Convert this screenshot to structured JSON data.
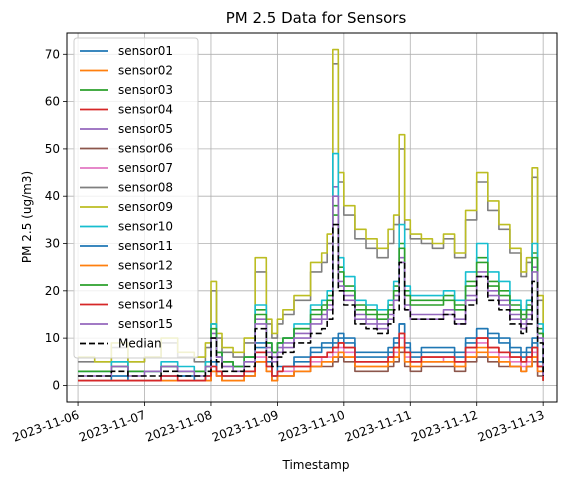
{
  "chart_data": {
    "type": "line",
    "title": "PM 2.5 Data for Sensors",
    "xlabel": "Timestamp",
    "ylabel": "PM 2.5 (ug/m3)",
    "x_tick_labels": [
      "2023-11-06",
      "2023-11-07",
      "2023-11-08",
      "2023-11-09",
      "2023-11-10",
      "2023-11-11",
      "2023-11-12",
      "2023-11-13"
    ],
    "y_ticks": [
      0,
      10,
      20,
      30,
      40,
      50,
      60,
      70
    ],
    "xlim": [
      "2023-11-05 20:00",
      "2023-11-13 05:00"
    ],
    "ylim": [
      -3.5,
      74.5
    ],
    "grid": true,
    "legend_position": "upper left",
    "x": [
      "2023-11-06 00:00",
      "2023-11-06 06:00",
      "2023-11-06 12:00",
      "2023-11-06 18:00",
      "2023-11-07 00:00",
      "2023-11-07 06:00",
      "2023-11-07 12:00",
      "2023-11-07 18:00",
      "2023-11-07 22:00",
      "2023-11-08 00:00",
      "2023-11-08 02:00",
      "2023-11-08 04:00",
      "2023-11-08 08:00",
      "2023-11-08 12:00",
      "2023-11-08 16:00",
      "2023-11-08 20:00",
      "2023-11-08 22:00",
      "2023-11-09 00:00",
      "2023-11-09 02:00",
      "2023-11-09 06:00",
      "2023-11-09 12:00",
      "2023-11-09 16:00",
      "2023-11-09 18:00",
      "2023-11-09 20:00",
      "2023-11-09 22:00",
      "2023-11-10 00:00",
      "2023-11-10 04:00",
      "2023-11-10 08:00",
      "2023-11-10 12:00",
      "2023-11-10 16:00",
      "2023-11-10 18:00",
      "2023-11-10 20:00",
      "2023-11-10 22:00",
      "2023-11-11 00:00",
      "2023-11-11 04:00",
      "2023-11-11 08:00",
      "2023-11-11 12:00",
      "2023-11-11 16:00",
      "2023-11-11 20:00",
      "2023-11-12 00:00",
      "2023-11-12 04:00",
      "2023-11-12 08:00",
      "2023-11-12 12:00",
      "2023-11-12 16:00",
      "2023-11-12 18:00",
      "2023-11-12 20:00",
      "2023-11-12 22:00",
      "2023-11-13 00:00"
    ],
    "series": [
      {
        "name": "sensor01",
        "color": "#1f77b4",
        "values": [
          1,
          1,
          2,
          1,
          1,
          2,
          2,
          1,
          2,
          5,
          3,
          2,
          2,
          3,
          8,
          4,
          2,
          3,
          4,
          5,
          7,
          8,
          8,
          9,
          10,
          9,
          6,
          6,
          6,
          7,
          9,
          13,
          8,
          6,
          7,
          7,
          7,
          6,
          9,
          12,
          10,
          9,
          7,
          6,
          7,
          9,
          4,
          1
        ],
        "dash": false
      },
      {
        "name": "sensor02",
        "color": "#ff7f0e",
        "values": [
          1,
          1,
          1,
          1,
          1,
          1,
          1,
          1,
          1,
          3,
          2,
          1,
          1,
          2,
          5,
          3,
          1,
          2,
          2,
          3,
          4,
          5,
          5,
          6,
          7,
          6,
          4,
          4,
          4,
          5,
          6,
          8,
          5,
          4,
          5,
          5,
          5,
          4,
          6,
          7,
          6,
          5,
          4,
          3,
          4,
          6,
          3,
          1
        ],
        "dash": false
      },
      {
        "name": "sensor03",
        "color": "#2ca02c",
        "values": [
          3,
          3,
          5,
          3,
          3,
          4,
          3,
          3,
          5,
          13,
          7,
          5,
          4,
          6,
          16,
          9,
          7,
          9,
          10,
          12,
          16,
          17,
          19,
          38,
          25,
          21,
          17,
          16,
          15,
          17,
          21,
          30,
          20,
          18,
          18,
          18,
          19,
          17,
          22,
          27,
          22,
          20,
          17,
          15,
          17,
          28,
          12,
          3
        ],
        "dash": false
      },
      {
        "name": "sensor04",
        "color": "#d62728",
        "values": [
          1,
          1,
          1,
          1,
          1,
          2,
          1,
          1,
          2,
          4,
          3,
          2,
          2,
          3,
          7,
          4,
          2,
          3,
          4,
          4,
          6,
          6,
          7,
          8,
          9,
          8,
          5,
          5,
          5,
          6,
          8,
          11,
          7,
          5,
          6,
          6,
          6,
          5,
          8,
          10,
          8,
          7,
          6,
          5,
          6,
          8,
          4,
          1
        ],
        "dash": false
      },
      {
        "name": "sensor05",
        "color": "#9467bd",
        "values": [
          3,
          3,
          4,
          3,
          3,
          4,
          3,
          3,
          4,
          11,
          6,
          4,
          4,
          5,
          14,
          8,
          6,
          8,
          9,
          11,
          14,
          15,
          17,
          42,
          22,
          19,
          15,
          14,
          13,
          15,
          19,
          27,
          17,
          15,
          15,
          15,
          16,
          14,
          19,
          24,
          20,
          18,
          15,
          13,
          15,
          25,
          11,
          2
        ],
        "dash": false
      },
      {
        "name": "sensor06",
        "color": "#8c564b",
        "values": [
          1,
          1,
          1,
          1,
          1,
          1,
          1,
          1,
          1,
          3,
          2,
          1,
          1,
          2,
          5,
          3,
          1,
          2,
          2,
          3,
          4,
          4,
          4,
          5,
          6,
          5,
          3,
          3,
          3,
          4,
          5,
          7,
          4,
          3,
          4,
          4,
          4,
          3,
          5,
          6,
          5,
          4,
          4,
          3,
          4,
          5,
          2,
          1
        ],
        "dash": false
      },
      {
        "name": "sensor07",
        "color": "#e377c2",
        "values": [
          1,
          1,
          1,
          1,
          1,
          2,
          1,
          1,
          2,
          4,
          2,
          2,
          2,
          3,
          6,
          4,
          2,
          3,
          3,
          4,
          5,
          6,
          6,
          7,
          8,
          7,
          5,
          5,
          5,
          6,
          7,
          10,
          6,
          5,
          5,
          5,
          6,
          5,
          7,
          9,
          7,
          6,
          5,
          4,
          5,
          7,
          3,
          1
        ],
        "dash": false
      },
      {
        "name": "sensor08",
        "color": "#7f7f7f",
        "values": [
          5,
          5,
          8,
          5,
          6,
          9,
          6,
          5,
          8,
          20,
          10,
          7,
          6,
          9,
          24,
          13,
          10,
          13,
          15,
          18,
          24,
          26,
          30,
          68,
          43,
          36,
          31,
          29,
          27,
          30,
          34,
          50,
          33,
          31,
          30,
          29,
          31,
          27,
          35,
          43,
          37,
          33,
          28,
          23,
          26,
          44,
          18,
          3
        ],
        "dash": false
      },
      {
        "name": "sensor09",
        "color": "#bcbd22",
        "values": [
          6,
          5,
          9,
          5,
          6,
          10,
          7,
          6,
          9,
          22,
          11,
          8,
          7,
          10,
          27,
          14,
          11,
          14,
          16,
          19,
          26,
          28,
          32,
          71,
          45,
          38,
          33,
          31,
          29,
          33,
          36,
          53,
          35,
          32,
          31,
          30,
          32,
          28,
          37,
          45,
          39,
          34,
          29,
          24,
          27,
          46,
          19,
          3
        ],
        "dash": false
      },
      {
        "name": "sensor10",
        "color": "#17becf",
        "values": [
          3,
          3,
          5,
          3,
          3,
          5,
          4,
          3,
          5,
          13,
          7,
          5,
          4,
          6,
          17,
          9,
          7,
          9,
          10,
          13,
          17,
          18,
          20,
          49,
          27,
          23,
          18,
          17,
          16,
          18,
          22,
          34,
          21,
          19,
          19,
          19,
          20,
          18,
          24,
          30,
          24,
          22,
          18,
          16,
          18,
          30,
          13,
          3
        ],
        "dash": false
      },
      {
        "name": "sensor11",
        "color": "#1f77b4",
        "values": [
          1,
          1,
          2,
          1,
          1,
          2,
          2,
          1,
          2,
          5,
          3,
          2,
          2,
          3,
          9,
          5,
          2,
          4,
          4,
          6,
          8,
          9,
          9,
          10,
          11,
          10,
          7,
          7,
          7,
          8,
          10,
          13,
          9,
          7,
          8,
          8,
          8,
          7,
          10,
          12,
          11,
          10,
          8,
          7,
          8,
          10,
          5,
          1
        ],
        "dash": false
      },
      {
        "name": "sensor12",
        "color": "#ff7f0e",
        "values": [
          1,
          1,
          1,
          1,
          1,
          1,
          1,
          1,
          1,
          3,
          2,
          1,
          1,
          2,
          5,
          3,
          1,
          2,
          2,
          3,
          4,
          5,
          5,
          6,
          7,
          6,
          4,
          4,
          4,
          5,
          6,
          8,
          5,
          4,
          5,
          5,
          5,
          4,
          6,
          8,
          6,
          5,
          4,
          3,
          4,
          6,
          3,
          1
        ],
        "dash": false
      },
      {
        "name": "sensor13",
        "color": "#2ca02c",
        "values": [
          3,
          3,
          4,
          3,
          3,
          4,
          3,
          3,
          4,
          12,
          7,
          5,
          4,
          6,
          15,
          9,
          7,
          9,
          10,
          12,
          15,
          16,
          18,
          36,
          24,
          20,
          16,
          15,
          14,
          16,
          20,
          29,
          19,
          17,
          17,
          17,
          18,
          16,
          21,
          26,
          21,
          19,
          16,
          14,
          16,
          27,
          11,
          3
        ],
        "dash": false
      },
      {
        "name": "sensor14",
        "color": "#d62728",
        "values": [
          1,
          1,
          1,
          1,
          1,
          2,
          1,
          1,
          2,
          4,
          3,
          2,
          2,
          3,
          7,
          4,
          2,
          3,
          4,
          4,
          6,
          6,
          7,
          8,
          9,
          8,
          5,
          5,
          5,
          6,
          8,
          11,
          7,
          5,
          6,
          6,
          6,
          5,
          8,
          10,
          8,
          7,
          6,
          5,
          6,
          8,
          4,
          1
        ],
        "dash": false
      },
      {
        "name": "sensor15",
        "color": "#9467bd",
        "values": [
          2,
          2,
          4,
          2,
          3,
          4,
          3,
          2,
          4,
          10,
          6,
          4,
          3,
          5,
          13,
          7,
          5,
          7,
          8,
          10,
          13,
          14,
          16,
          40,
          21,
          18,
          14,
          13,
          12,
          14,
          18,
          26,
          16,
          14,
          14,
          14,
          15,
          13,
          18,
          23,
          19,
          17,
          14,
          12,
          14,
          24,
          10,
          2
        ],
        "dash": false
      },
      {
        "name": "Median",
        "color": "#000000",
        "values": [
          2,
          2,
          3,
          2,
          2,
          3,
          2,
          2,
          3,
          10,
          5,
          3,
          3,
          4,
          12,
          6,
          4,
          6,
          7,
          9,
          11,
          12,
          14,
          34,
          20,
          17,
          13,
          12,
          11,
          13,
          16,
          26,
          16,
          14,
          14,
          14,
          15,
          13,
          17,
          23,
          18,
          16,
          13,
          11,
          13,
          22,
          9,
          2
        ],
        "dash": true
      }
    ]
  }
}
